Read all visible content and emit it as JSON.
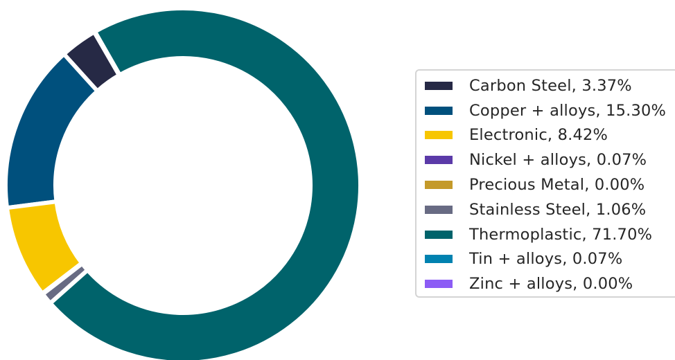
{
  "chart_data": {
    "type": "pie",
    "donut": true,
    "title": "",
    "legend_position": "right",
    "slices": [
      {
        "label": "Carbon Steel, 3.37%",
        "category": "Carbon Steel",
        "value": 3.37,
        "color": "#262945"
      },
      {
        "label": "Copper + alloys, 15.30%",
        "category": "Copper + alloys",
        "value": 15.3,
        "color": "#00507d"
      },
      {
        "label": "Electronic, 8.42%",
        "category": "Electronic",
        "value": 8.42,
        "color": "#f7c600"
      },
      {
        "label": "Nickel + alloys, 0.07%",
        "category": "Nickel + alloys",
        "value": 0.07,
        "color": "#5b3aa8"
      },
      {
        "label": "Precious Metal, 0.00%",
        "category": "Precious Metal",
        "value": 0.0,
        "color": "#c49a2a"
      },
      {
        "label": "Stainless Steel, 1.06%",
        "category": "Stainless Steel",
        "value": 1.06,
        "color": "#686b83"
      },
      {
        "label": "Thermoplastic, 71.70%",
        "category": "Thermoplastic",
        "value": 71.7,
        "color": "#00636b"
      },
      {
        "label": "Tin + alloys, 0.07%",
        "category": "Tin + alloys",
        "value": 0.07,
        "color": "#0082b0"
      },
      {
        "label": "Zinc + alloys, 0.00%",
        "category": "Zinc + alloys",
        "value": 0.0,
        "color": "#8c5cf5"
      }
    ]
  }
}
